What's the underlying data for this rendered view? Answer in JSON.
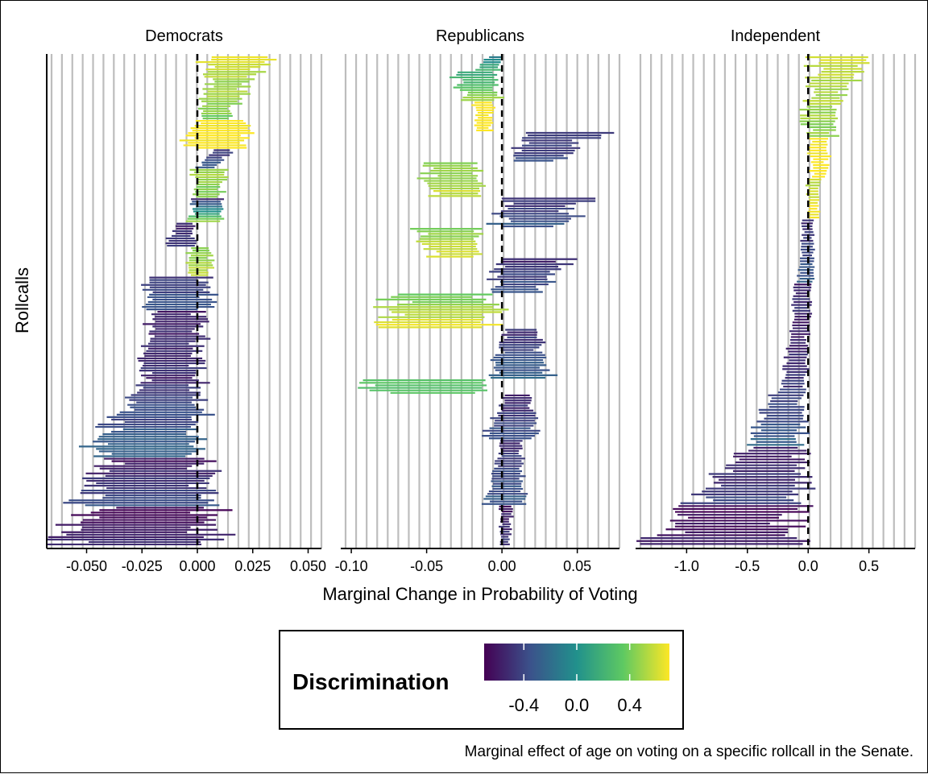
{
  "caption": "Marginal effect of age on voting on a specific rollcall in the Senate.",
  "colors": {
    "viridis": [
      "#440154",
      "#3b528b",
      "#21918c",
      "#5ec962",
      "#fde725"
    ],
    "grid": "#bdbdbd",
    "zero_line": "#000000"
  },
  "chart_data": {
    "type": "faceted-errorbar",
    "xlabel": "Marginal Change in Probability of Voting",
    "ylabel": "Rollcalls",
    "legend": {
      "title": "Discrimination",
      "ticks": [
        -0.4,
        0.0,
        0.4
      ],
      "tick_labels": [
        "-0.4",
        "0.0",
        "0.4"
      ],
      "range": [
        -0.7,
        0.7
      ],
      "placement": "bottom"
    },
    "facets": [
      {
        "name": "Democrats",
        "xlim": [
          -0.068,
          0.056
        ],
        "xticks": [
          -0.05,
          -0.025,
          0.0,
          0.025,
          0.05
        ],
        "xtick_labels": [
          "-0.050",
          "-0.025",
          "0.000",
          "0.025",
          "0.050"
        ],
        "bands": [
          {
            "n": 14,
            "center": [
              0.018,
              0.012
            ],
            "half": [
              0.014,
              0.008
            ],
            "disc": [
              0.65,
              0.45
            ]
          },
          {
            "n": 12,
            "center": [
              0.012,
              0.008
            ],
            "half": [
              0.01,
              0.006
            ],
            "disc": [
              0.55,
              0.4
            ]
          },
          {
            "n": 12,
            "center": [
              0.009,
              0.009
            ],
            "half": [
              0.012,
              0.012
            ],
            "disc": [
              0.72,
              0.72
            ]
          },
          {
            "n": 8,
            "center": [
              0.012,
              0.004
            ],
            "half": [
              0.004,
              0.004
            ],
            "disc": [
              -0.5,
              -0.3
            ]
          },
          {
            "n": 12,
            "center": [
              0.006,
              0.005
            ],
            "half": [
              0.008,
              0.006
            ],
            "disc": [
              0.5,
              0.4
            ]
          },
          {
            "n": 10,
            "center": [
              0.005,
              0.003
            ],
            "half": [
              0.006,
              0.008
            ],
            "disc": [
              -0.5,
              0.5
            ]
          },
          {
            "n": 10,
            "center": [
              -0.006,
              -0.008
            ],
            "half": [
              0.004,
              0.006
            ],
            "disc": [
              -0.55,
              -0.45
            ]
          },
          {
            "n": 12,
            "center": [
              0.001,
              0.001
            ],
            "half": [
              0.005,
              0.005
            ],
            "disc": [
              0.4,
              0.6
            ]
          },
          {
            "n": 14,
            "center": [
              -0.008,
              -0.01
            ],
            "half": [
              0.012,
              0.015
            ],
            "disc": [
              -0.45,
              -0.3
            ]
          },
          {
            "n": 26,
            "center": [
              -0.009,
              -0.012
            ],
            "half": [
              0.011,
              0.013
            ],
            "disc": [
              -0.6,
              -0.45
            ]
          },
          {
            "n": 16,
            "center": [
              -0.012,
              -0.016
            ],
            "half": [
              0.013,
              0.016
            ],
            "disc": [
              -0.55,
              -0.35
            ]
          },
          {
            "n": 18,
            "center": [
              -0.018,
              -0.025
            ],
            "half": [
              0.018,
              0.022
            ],
            "disc": [
              -0.4,
              -0.2
            ]
          },
          {
            "n": 20,
            "center": [
              -0.018,
              -0.025
            ],
            "half": [
              0.023,
              0.028
            ],
            "disc": [
              -0.6,
              -0.35
            ]
          },
          {
            "n": 16,
            "center": [
              -0.02,
              -0.03
            ],
            "half": [
              0.026,
              0.034
            ],
            "disc": [
              -0.68,
              -0.55
            ]
          }
        ]
      },
      {
        "name": "Republicans",
        "xlim": [
          -0.107,
          0.078
        ],
        "xticks": [
          -0.1,
          -0.05,
          0.0,
          0.05
        ],
        "xtick_labels": [
          "-0.10",
          "-0.05",
          "0.00",
          "0.05"
        ],
        "bands": [
          {
            "n": 6,
            "center": [
              -0.005,
              -0.01
            ],
            "half": [
              0.004,
              0.007
            ],
            "disc": [
              -0.1,
              0.2
            ]
          },
          {
            "n": 12,
            "center": [
              -0.018,
              -0.015
            ],
            "half": [
              0.014,
              0.012
            ],
            "disc": [
              0.1,
              0.5
            ]
          },
          {
            "n": 12,
            "center": [
              -0.012,
              -0.012
            ],
            "half": [
              0.006,
              0.005
            ],
            "disc": [
              0.72,
              0.72
            ]
          },
          {
            "n": 12,
            "center": [
              0.04,
              0.025
            ],
            "half": [
              0.025,
              0.015
            ],
            "disc": [
              -0.5,
              -0.35
            ]
          },
          {
            "n": 14,
            "center": [
              -0.035,
              -0.03
            ],
            "half": [
              0.018,
              0.015
            ],
            "disc": [
              0.45,
              0.6
            ]
          },
          {
            "n": 12,
            "center": [
              0.03,
              0.02
            ],
            "half": [
              0.028,
              0.022
            ],
            "disc": [
              -0.5,
              -0.3
            ]
          },
          {
            "n": 12,
            "center": [
              -0.035,
              -0.03
            ],
            "half": [
              0.02,
              0.016
            ],
            "disc": [
              0.4,
              0.65
            ]
          },
          {
            "n": 14,
            "center": [
              0.02,
              0.012
            ],
            "half": [
              0.022,
              0.015
            ],
            "disc": [
              -0.55,
              -0.3
            ]
          },
          {
            "n": 14,
            "center": [
              -0.04,
              -0.045
            ],
            "half": [
              0.03,
              0.035
            ],
            "disc": [
              0.4,
              0.65
            ]
          },
          {
            "n": 20,
            "center": [
              0.012,
              0.012
            ],
            "half": [
              0.01,
              0.02
            ],
            "disc": [
              -0.5,
              -0.25
            ]
          },
          {
            "n": 6,
            "center": [
              -0.055,
              -0.04
            ],
            "half": [
              0.04,
              0.03
            ],
            "disc": [
              0.3,
              0.3
            ]
          },
          {
            "n": 18,
            "center": [
              0.01,
              0.006
            ],
            "half": [
              0.008,
              0.018
            ],
            "disc": [
              -0.55,
              -0.3
            ]
          },
          {
            "n": 26,
            "center": [
              0.006,
              0.002
            ],
            "half": [
              0.006,
              0.012
            ],
            "disc": [
              -0.5,
              -0.3
            ]
          },
          {
            "n": 16,
            "center": [
              0.003,
              0.002
            ],
            "half": [
              0.004,
              0.003
            ],
            "disc": [
              -0.6,
              -0.45
            ]
          }
        ]
      },
      {
        "name": "Independent",
        "xlim": [
          -1.42,
          0.88
        ],
        "xticks": [
          -1.0,
          -0.5,
          0.0,
          0.5
        ],
        "xtick_labels": [
          "-1.0",
          "-0.5",
          "0.0",
          "0.5"
        ],
        "bands": [
          {
            "n": 14,
            "center": [
              0.28,
              0.14
            ],
            "half": [
              0.25,
              0.12
            ],
            "disc": [
              0.6,
              0.5
            ]
          },
          {
            "n": 14,
            "center": [
              0.12,
              0.1
            ],
            "half": [
              0.14,
              0.12
            ],
            "disc": [
              0.55,
              0.45
            ]
          },
          {
            "n": 14,
            "center": [
              0.09,
              0.09
            ],
            "half": [
              0.08,
              0.06
            ],
            "disc": [
              0.72,
              0.72
            ]
          },
          {
            "n": 14,
            "center": [
              0.04,
              0.05
            ],
            "half": [
              0.05,
              0.04
            ],
            "disc": [
              0.55,
              0.72
            ]
          },
          {
            "n": 22,
            "center": [
              0.0,
              -0.02
            ],
            "half": [
              0.04,
              0.06
            ],
            "disc": [
              -0.5,
              -0.3
            ]
          },
          {
            "n": 10,
            "center": [
              -0.04,
              -0.06
            ],
            "half": [
              0.06,
              0.07
            ],
            "disc": [
              -0.55,
              -0.45
            ]
          },
          {
            "n": 26,
            "center": [
              -0.05,
              -0.12
            ],
            "half": [
              0.06,
              0.1
            ],
            "disc": [
              -0.6,
              -0.45
            ]
          },
          {
            "n": 20,
            "center": [
              -0.15,
              -0.28
            ],
            "half": [
              0.12,
              0.22
            ],
            "disc": [
              -0.45,
              -0.25
            ]
          },
          {
            "n": 20,
            "center": [
              -0.3,
              -0.5
            ],
            "half": [
              0.24,
              0.42
            ],
            "disc": [
              -0.6,
              -0.4
            ]
          },
          {
            "n": 14,
            "center": [
              -0.5,
              -0.75
            ],
            "half": [
              0.45,
              0.6
            ],
            "disc": [
              -0.68,
              -0.55
            ]
          }
        ]
      }
    ]
  }
}
